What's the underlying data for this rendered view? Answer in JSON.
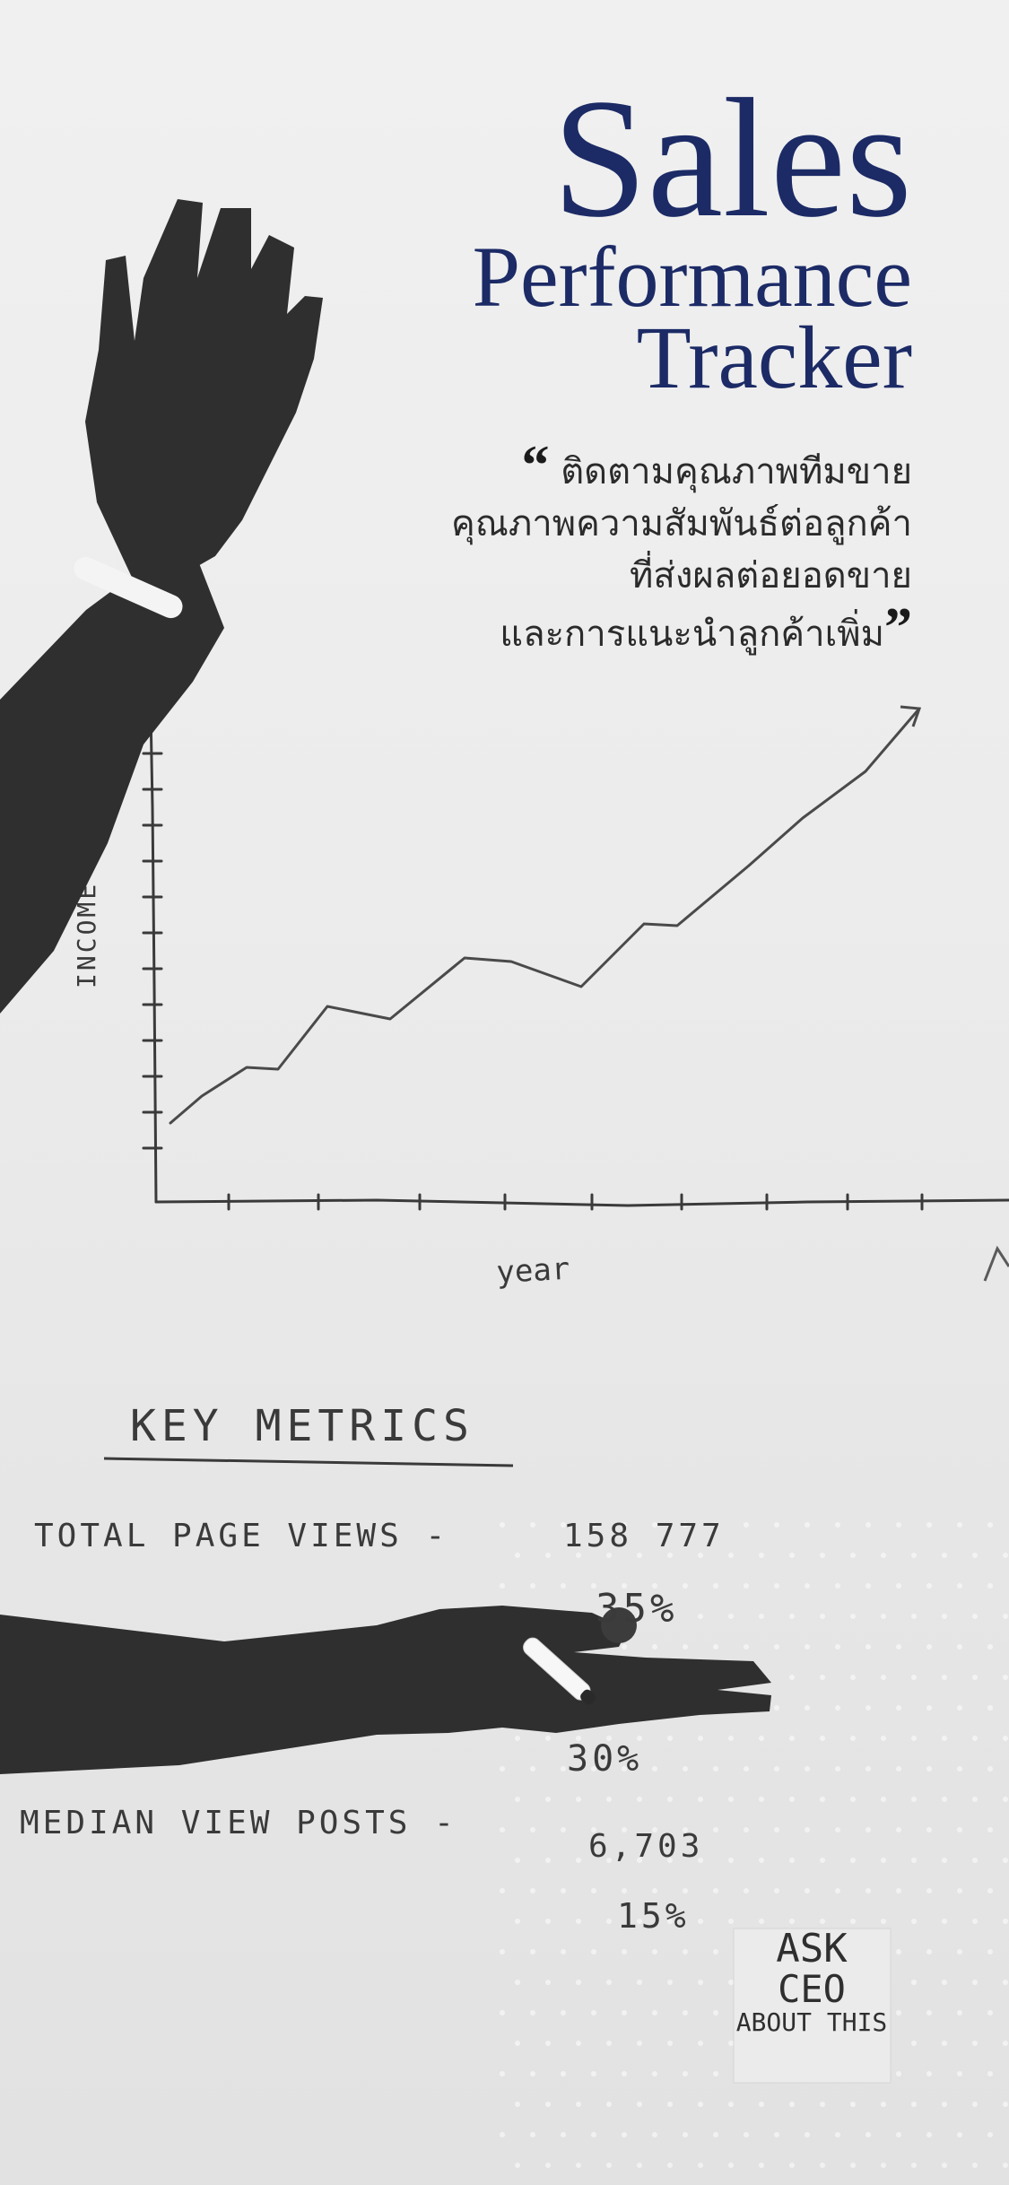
{
  "title": {
    "line1": "Sales",
    "line2": "Performance",
    "line3": "Tracker",
    "color": "#1c2b66"
  },
  "quote": {
    "open_mark": "“",
    "close_mark": "”",
    "lines": [
      "ติดตามคุณภาพทีมขาย",
      "คุณภาพความสัมพันธ์ต่อลูกค้า",
      "ที่ส่งผลต่อยอดขาย",
      "และการแนะนำลูกค้าเพิ่ม"
    ]
  },
  "whiteboard": {
    "chart": {
      "ylabel": "INCOME",
      "xlabel": "year",
      "type": "line",
      "trend": "rising"
    },
    "metrics": {
      "heading": "KEY METRICS",
      "row1_label": "TOTAL PAGE VIEWS -",
      "row1_value": "158 777",
      "pct1": "35%",
      "pct2": "30%",
      "row2_label": "MEDIAN VIEW POSTS -",
      "row2_value": "6,703",
      "pct3": "15%"
    },
    "sticky_note": {
      "line1": "ASK",
      "line2": "CEO",
      "line3": "ABOUT THIS"
    }
  },
  "colors": {
    "title": "#1c2b66",
    "ink": "#3a3a3a",
    "skin": "#2f2f2f",
    "board": "#ececec"
  }
}
